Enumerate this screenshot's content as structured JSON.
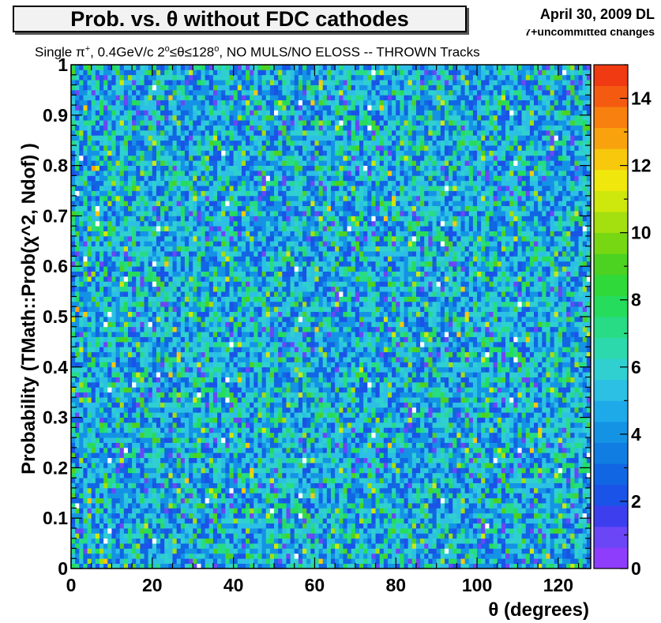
{
  "header": {
    "title": "Prob. vs. θ without FDC cathodes",
    "date": "April 30, 2009 DL",
    "version": "7+uncommitted changes",
    "subtitle_a": "Single π",
    "subtitle_b": "+",
    "subtitle_c": ", 0.4GeV/c 2",
    "subtitle_d": "o",
    "subtitle_e": "≤θ≤128",
    "subtitle_f": "o",
    "subtitle_g": ", NO MULS/NO ELOSS -- THROWN Tracks"
  },
  "chart_data": {
    "type": "heatmap",
    "title": "Prob. vs. θ without FDC cathodes",
    "xlabel": "θ (degrees)",
    "ylabel": "Probability (TMath::Prob(χ^2, Ndof) )",
    "xlim": [
      0,
      128
    ],
    "ylim": [
      0,
      1
    ],
    "x_bins": 128,
    "y_bins": 100,
    "x_ticks": [
      "0",
      "20",
      "40",
      "60",
      "80",
      "100",
      "120"
    ],
    "y_ticks": [
      "0",
      "0.1",
      "0.2",
      "0.3",
      "0.4",
      "0.5",
      "0.6",
      "0.7",
      "0.8",
      "0.9",
      "1"
    ],
    "z_range": [
      0,
      15
    ],
    "z_ticks": [
      "0",
      "2",
      "4",
      "6",
      "8",
      "10",
      "12",
      "14"
    ],
    "typical_count": 5,
    "max_count": 14,
    "colorbar_colors": [
      "#8f3dfc",
      "#6b46f7",
      "#3d3fef",
      "#1a53e8",
      "#1166e3",
      "#0f7de2",
      "#1493e5",
      "#1eaae9",
      "#2cc0e4",
      "#2fd0cf",
      "#2cd9ad",
      "#27dc85",
      "#25dc5c",
      "#2fd93a",
      "#4cd221",
      "#78d713",
      "#a4df0f",
      "#cee80d",
      "#f0e80c",
      "#f7c80c",
      "#f8a30d",
      "#f7800f",
      "#f55b10",
      "#f03a12"
    ],
    "description": "Approximately uniform random counts (~5 per bin, range 0–14) across θ 0–128 degrees and probability 0–1"
  }
}
